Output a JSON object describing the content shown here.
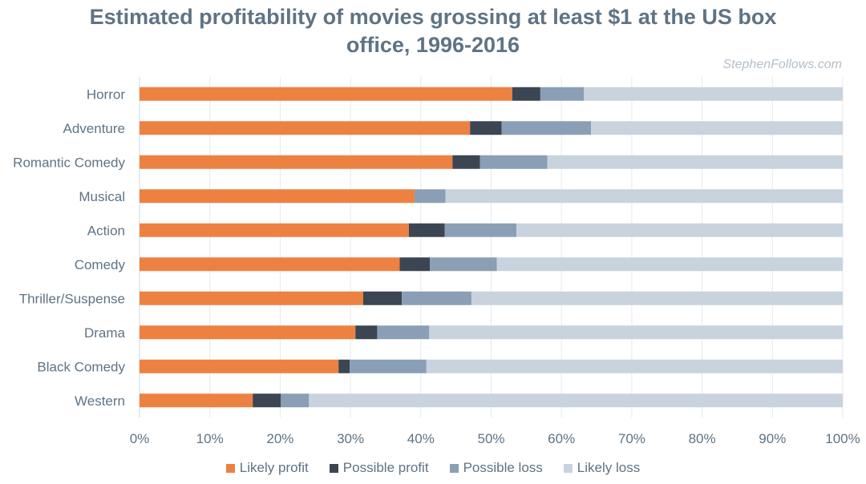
{
  "chart_data": {
    "type": "bar",
    "orientation": "horizontal",
    "stacked": true,
    "title": "Estimated profitability of movies grossing at least $1 at the US box office, 1996-2016",
    "source": "StephenFollows.com",
    "categories": [
      "Horror",
      "Adventure",
      "Romantic Comedy",
      "Musical",
      "Action",
      "Comedy",
      "Thriller/Suspense",
      "Drama",
      "Black Comedy",
      "Western"
    ],
    "series": [
      {
        "name": "Likely profit",
        "color": "#ed8141",
        "values": [
          53.0,
          47.0,
          44.5,
          39.1,
          38.3,
          37.0,
          31.8,
          30.7,
          28.3,
          16.1
        ]
      },
      {
        "name": "Possible profit",
        "color": "#3b4652",
        "values": [
          4.0,
          4.5,
          3.9,
          0.0,
          5.1,
          4.3,
          5.5,
          3.1,
          1.6,
          4.0
        ]
      },
      {
        "name": "Possible loss",
        "color": "#8a9fb5",
        "values": [
          6.2,
          12.7,
          9.6,
          4.4,
          10.2,
          9.5,
          9.9,
          7.4,
          10.9,
          4.0
        ]
      },
      {
        "name": "Likely loss",
        "color": "#c9d3de",
        "values": [
          36.8,
          35.8,
          42.0,
          56.5,
          46.4,
          49.2,
          52.8,
          58.8,
          59.2,
          75.9
        ]
      }
    ],
    "xlim": [
      0,
      100
    ],
    "xticks": [
      "0%",
      "10%",
      "20%",
      "30%",
      "40%",
      "50%",
      "60%",
      "70%",
      "80%",
      "90%",
      "100%"
    ],
    "grid": true,
    "legend": "bottom"
  }
}
